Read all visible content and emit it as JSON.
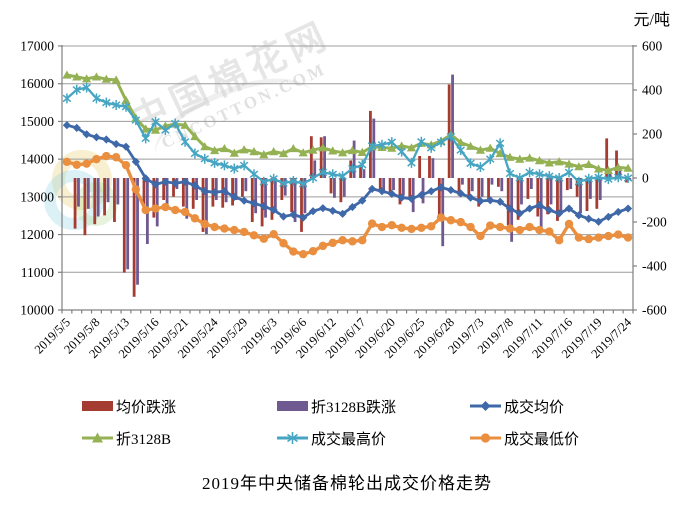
{
  "chart_data": {
    "type": "bar+line combo",
    "title": "2019年中央储备棉轮出成交价格走势",
    "unit_label": "元/吨",
    "left_axis": {
      "min": 10000,
      "max": 17000,
      "step": 1000,
      "tick_labels": [
        "17000",
        "16000",
        "15000",
        "14000",
        "13000",
        "12000",
        "11000",
        "10000"
      ]
    },
    "right_axis": {
      "min": -600,
      "max": 600,
      "step": 200,
      "tick_labels": [
        "600",
        "400",
        "200",
        "0",
        "-200",
        "-400",
        "-600"
      ]
    },
    "x_tick_label_every": 3,
    "x_tick_labels_shown": [
      "2019/5/5",
      "2019/5/8",
      "2019/5/13",
      "2019/5/16",
      "2019/5/21",
      "2019/5/24",
      "2019/5/29",
      "2019/6/3",
      "2019/6/6",
      "2019/6/12",
      "2019/6/17",
      "2019/6/20",
      "2019/6/25",
      "2019/6/28",
      "2019/7/3",
      "2019/7/8",
      "2019/7/11",
      "2019/7/16",
      "2019/7/19",
      "2019/7/24"
    ],
    "x": [
      "2019/5/5",
      "2019/5/6",
      "2019/5/7",
      "2019/5/8",
      "2019/5/9",
      "2019/5/10",
      "2019/5/13",
      "2019/5/14",
      "2019/5/15",
      "2019/5/16",
      "2019/5/17",
      "2019/5/20",
      "2019/5/21",
      "2019/5/22",
      "2019/5/23",
      "2019/5/24",
      "2019/5/27",
      "2019/5/28",
      "2019/5/29",
      "2019/5/30",
      "2019/5/31",
      "2019/6/3",
      "2019/6/4",
      "2019/6/5",
      "2019/6/6",
      "2019/6/10",
      "2019/6/11",
      "2019/6/12",
      "2019/6/13",
      "2019/6/14",
      "2019/6/17",
      "2019/6/18",
      "2019/6/19",
      "2019/6/20",
      "2019/6/21",
      "2019/6/24",
      "2019/6/25",
      "2019/6/26",
      "2019/6/27",
      "2019/6/28",
      "2019/7/1",
      "2019/7/2",
      "2019/7/3",
      "2019/7/4",
      "2019/7/5",
      "2019/7/8",
      "2019/7/9",
      "2019/7/10",
      "2019/7/11",
      "2019/7/12",
      "2019/7/15",
      "2019/7/16",
      "2019/7/17",
      "2019/7/18",
      "2019/7/19",
      "2019/7/22",
      "2019/7/23",
      "2019/7/24"
    ],
    "series": [
      {
        "name": "均价跌涨",
        "type": "bar",
        "axis": "right",
        "marker": "bar",
        "color": "#A43C32",
        "values": [
          0,
          -230,
          -260,
          -210,
          -170,
          -200,
          -430,
          -540,
          -130,
          -180,
          -100,
          -85,
          -130,
          -140,
          -245,
          -130,
          -135,
          -125,
          -85,
          -200,
          -220,
          -190,
          -100,
          -155,
          -245,
          190,
          185,
          -70,
          -110,
          80,
          50,
          305,
          -55,
          -75,
          -120,
          -100,
          100,
          100,
          -175,
          425,
          -80,
          -95,
          -130,
          -100,
          -40,
          -215,
          -190,
          -95,
          -175,
          -165,
          -195,
          -55,
          -85,
          -150,
          -140,
          180,
          125,
          -20
        ]
      },
      {
        "name": "折3128B跌涨",
        "type": "bar",
        "axis": "right",
        "marker": "bar",
        "color": "#705891",
        "values": [
          0,
          -130,
          -140,
          -175,
          -110,
          -120,
          -415,
          -485,
          -300,
          -220,
          -125,
          -50,
          -185,
          -100,
          -255,
          -100,
          -110,
          -100,
          -60,
          -160,
          -180,
          -140,
          -80,
          -200,
          -160,
          80,
          190,
          -90,
          -85,
          170,
          40,
          270,
          -70,
          -55,
          -80,
          -155,
          -115,
          90,
          -310,
          470,
          -30,
          -60,
          -85,
          -30,
          -60,
          -290,
          -120,
          -50,
          -225,
          -120,
          -155,
          -50,
          -160,
          -95,
          -100,
          25,
          40,
          -10
        ]
      },
      {
        "name": "成交均价",
        "type": "line",
        "axis": "left",
        "marker": "diamond",
        "color": "#3E68A8",
        "values": [
          14900,
          14830,
          14660,
          14580,
          14520,
          14400,
          14330,
          13930,
          13490,
          13330,
          13400,
          13360,
          13400,
          13300,
          13150,
          13120,
          13150,
          13000,
          12900,
          12830,
          12750,
          12650,
          12480,
          12530,
          12450,
          12620,
          12700,
          12630,
          12550,
          12730,
          12900,
          13210,
          13150,
          13080,
          12980,
          12950,
          13050,
          13150,
          13250,
          13180,
          13090,
          12980,
          12890,
          12910,
          12870,
          12690,
          12560,
          12690,
          12780,
          12650,
          12560,
          12690,
          12510,
          12420,
          12340,
          12470,
          12600,
          12690
        ]
      },
      {
        "name": "折3128B",
        "type": "line",
        "axis": "left",
        "marker": "triangle",
        "color": "#94B254",
        "values": [
          16230,
          16180,
          16130,
          16180,
          16120,
          16100,
          15560,
          15080,
          14800,
          14770,
          14880,
          14930,
          14900,
          14600,
          14330,
          14230,
          14280,
          14160,
          14250,
          14200,
          14120,
          14200,
          14150,
          14280,
          14170,
          14240,
          14300,
          14220,
          14170,
          14230,
          14180,
          14330,
          14310,
          14290,
          14350,
          14300,
          14420,
          14380,
          14480,
          14650,
          14440,
          14340,
          14240,
          14290,
          14150,
          14050,
          14000,
          14030,
          13960,
          13900,
          13930,
          13870,
          13800,
          13860,
          13740,
          13700,
          13780,
          13760
        ]
      },
      {
        "name": "成交最高价",
        "type": "line",
        "axis": "left",
        "marker": "asterisk",
        "color": "#46A5C2",
        "values": [
          15610,
          15840,
          15900,
          15610,
          15500,
          15435,
          15390,
          15035,
          14550,
          14990,
          14770,
          14945,
          14460,
          14150,
          14010,
          13900,
          13835,
          13750,
          13835,
          13600,
          13400,
          13480,
          13360,
          13420,
          13350,
          13500,
          13650,
          13600,
          13550,
          13750,
          13850,
          14350,
          14380,
          14450,
          14200,
          13900,
          14460,
          14300,
          14450,
          14600,
          14240,
          13890,
          13790,
          14000,
          14420,
          13620,
          13500,
          13650,
          13600,
          13550,
          13500,
          13650,
          13400,
          13480,
          13520,
          13470,
          13520,
          13500
        ]
      },
      {
        "name": "成交最低价",
        "type": "line",
        "axis": "left",
        "marker": "circle",
        "color": "#E98F3F",
        "values": [
          13930,
          13850,
          13880,
          14000,
          14080,
          14050,
          13840,
          13200,
          12650,
          12690,
          12730,
          12650,
          12600,
          12430,
          12280,
          12200,
          12160,
          12120,
          12070,
          11980,
          11890,
          12010,
          11770,
          11550,
          11480,
          11560,
          11700,
          11780,
          11850,
          11820,
          11850,
          12290,
          12200,
          12250,
          12180,
          12150,
          12180,
          12220,
          12450,
          12380,
          12330,
          12200,
          11960,
          12240,
          12200,
          12160,
          12120,
          12200,
          12120,
          12080,
          11850,
          12280,
          11920,
          11880,
          11920,
          11960,
          12000,
          11920
        ]
      }
    ],
    "grid": {
      "horizontal": true,
      "color": "#9C9C9C"
    },
    "legend_position": "bottom",
    "watermark": {
      "line1": "中国棉花网",
      "line2": "CNCOTTON.COM"
    }
  }
}
